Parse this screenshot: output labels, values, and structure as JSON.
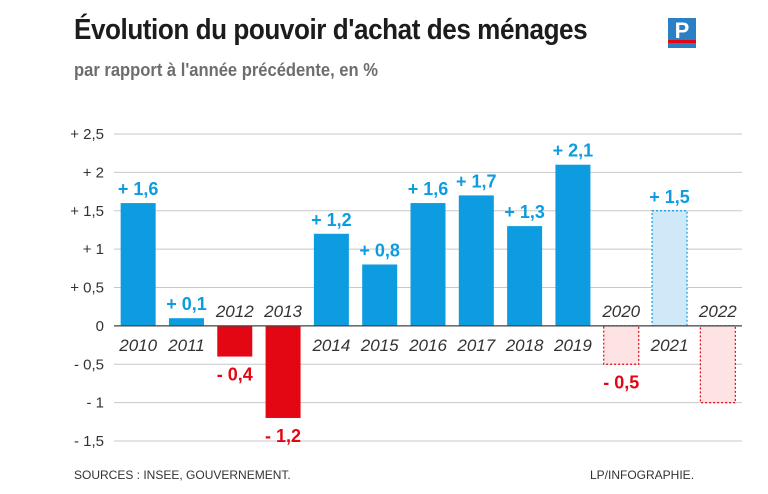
{
  "header": {
    "title": "Évolution du pouvoir d'achat des ménages",
    "subtitle": "par rapport à l'année précédente, en %"
  },
  "logo": {
    "letter": "P",
    "icon": "le-parisien-logo",
    "color": "#2b7fc4"
  },
  "footer": {
    "sources": "SOURCES : INSEE, GOUVERNEMENT.",
    "credit": "LP/INFOGRAPHIE."
  },
  "colors": {
    "positive": "#0d9ce0",
    "negative": "#e30613",
    "positive_projection_fill": "#cfe9f8",
    "negative_projection_fill": "#fde3e3"
  },
  "chart_data": {
    "type": "bar",
    "title": "Évolution du pouvoir d'achat des ménages",
    "subtitle": "par rapport à l'année précédente, en %",
    "xlabel": "",
    "ylabel": "",
    "ylim": [
      -1.5,
      2.5
    ],
    "grid": true,
    "yticks": [
      2.5,
      2,
      1.5,
      1,
      0.5,
      0,
      -0.5,
      -1,
      -1.5
    ],
    "ytick_labels": [
      "+ 2,5",
      "+ 2",
      "+ 1,5",
      "+ 1",
      "+ 0,5",
      "0",
      "- 0,5",
      "- 1",
      "- 1,5"
    ],
    "categories": [
      "2010",
      "2011",
      "2012",
      "2013",
      "2014",
      "2015",
      "2016",
      "2017",
      "2018",
      "2019",
      "2020",
      "2021",
      "2022"
    ],
    "values": [
      1.6,
      0.1,
      -0.4,
      -1.2,
      1.2,
      0.8,
      1.6,
      1.7,
      1.3,
      2.1,
      -0.5,
      1.5,
      -1.0
    ],
    "value_labels": [
      "+ 1,6",
      "+ 0,1",
      "- 0,4",
      "- 1,2",
      "+ 1,2",
      "+ 0,8",
      "+ 1,6",
      "+ 1,7",
      "+ 1,3",
      "+ 2,1",
      "- 0,5",
      "+ 1,5",
      ""
    ],
    "projected": [
      false,
      false,
      false,
      false,
      false,
      false,
      false,
      false,
      false,
      false,
      true,
      true,
      true
    ]
  }
}
